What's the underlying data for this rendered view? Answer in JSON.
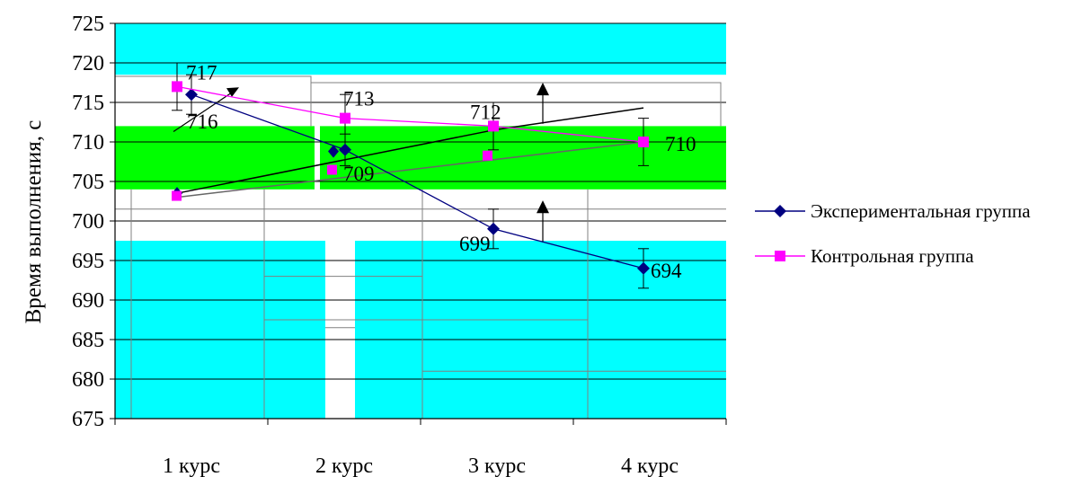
{
  "chart_data": {
    "type": "line",
    "categories": [
      "1 курс",
      "2 курс",
      "3 курс",
      "4 курс"
    ],
    "ylabel": "Время выполнения, с",
    "ylim": [
      675,
      725
    ],
    "ytick_step": 5,
    "series": [
      {
        "name": "Экспериментальная группа",
        "color": "#000080",
        "marker": "diamond",
        "values": [
          716,
          709,
          699,
          694
        ],
        "errors": [
          2.5,
          2,
          2.5,
          2.5
        ],
        "data_labels": [
          "716",
          "709",
          "699",
          "694"
        ]
      },
      {
        "name": "Контрольная группа",
        "color": "#ff00ff",
        "marker": "square",
        "values": [
          717,
          713,
          712,
          710
        ],
        "errors": [
          3,
          3,
          3,
          3
        ],
        "data_labels": [
          "717",
          "713",
          "712",
          "710"
        ]
      }
    ],
    "legend_position": "right",
    "background_bands": {
      "upper_band": [
        718.5,
        725
      ],
      "middle_band": [
        704,
        712
      ],
      "lower_band": [
        675,
        697.5
      ],
      "colors": {
        "cyan": "#00ffff",
        "green": "#00ff00"
      }
    }
  }
}
